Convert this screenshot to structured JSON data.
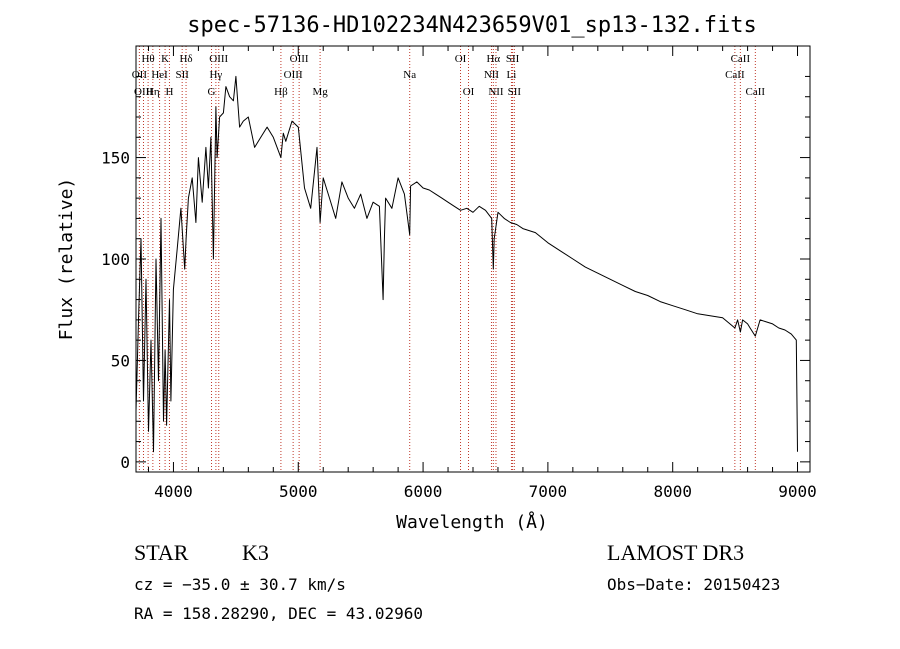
{
  "chart_data": {
    "type": "line",
    "title": "spec-57136-HD102234N423659V01_sp13-132.fits",
    "xlabel": "Wavelength (Å)",
    "ylabel": "Flux (relative)",
    "xlim": [
      3700,
      9100
    ],
    "ylim": [
      -5,
      205
    ],
    "x_ticks": [
      4000,
      5000,
      6000,
      7000,
      8000,
      9000
    ],
    "x_tick_labels": [
      "4000",
      "5000",
      "6000",
      "7000",
      "8000",
      "9000"
    ],
    "y_ticks": [
      0,
      50,
      100,
      150
    ],
    "y_tick_labels": [
      "0",
      "50",
      "100",
      "150"
    ],
    "series": [
      {
        "name": "spectrum",
        "x": [
          3700,
          3720,
          3740,
          3760,
          3780,
          3800,
          3820,
          3840,
          3860,
          3880,
          3900,
          3920,
          3933,
          3945,
          3968,
          3980,
          4000,
          4030,
          4060,
          4090,
          4101,
          4120,
          4150,
          4180,
          4200,
          4230,
          4260,
          4280,
          4300,
          4320,
          4340,
          4350,
          4370,
          4400,
          4420,
          4450,
          4480,
          4500,
          4530,
          4560,
          4600,
          4650,
          4700,
          4750,
          4800,
          4861,
          4880,
          4900,
          4950,
          5000,
          5050,
          5100,
          5150,
          5175,
          5200,
          5250,
          5300,
          5350,
          5400,
          5450,
          5500,
          5550,
          5600,
          5650,
          5680,
          5690,
          5700,
          5750,
          5800,
          5850,
          5893,
          5900,
          5950,
          6000,
          6050,
          6100,
          6150,
          6200,
          6250,
          6300,
          6350,
          6400,
          6450,
          6500,
          6550,
          6563,
          6570,
          6600,
          6650,
          6700,
          6750,
          6800,
          6900,
          7000,
          7100,
          7200,
          7300,
          7400,
          7500,
          7600,
          7700,
          7800,
          7900,
          8000,
          8100,
          8200,
          8300,
          8400,
          8498,
          8520,
          8542,
          8560,
          8600,
          8620,
          8662,
          8700,
          8750,
          8800,
          8850,
          8900,
          8950,
          8990,
          9000
        ],
        "y": [
          25,
          70,
          110,
          30,
          90,
          15,
          60,
          5,
          100,
          40,
          120,
          20,
          55,
          18,
          80,
          30,
          85,
          105,
          125,
          95,
          110,
          130,
          140,
          118,
          150,
          128,
          155,
          135,
          160,
          100,
          175,
          150,
          170,
          172,
          185,
          180,
          178,
          190,
          165,
          168,
          170,
          155,
          160,
          165,
          160,
          150,
          162,
          158,
          168,
          165,
          135,
          125,
          155,
          118,
          140,
          130,
          120,
          138,
          130,
          125,
          132,
          120,
          128,
          126,
          80,
          110,
          130,
          125,
          140,
          132,
          112,
          136,
          138,
          135,
          134,
          132,
          130,
          128,
          126,
          124,
          125,
          123,
          126,
          124,
          120,
          95,
          110,
          123,
          120,
          118,
          117,
          115,
          113,
          108,
          104,
          100,
          96,
          93,
          90,
          87,
          84,
          82,
          79,
          77,
          75,
          73,
          72,
          71,
          66,
          70,
          64,
          70,
          68,
          66,
          62,
          70,
          69,
          68,
          66,
          65,
          63,
          60,
          5
        ]
      }
    ],
    "lines": [
      {
        "label": "Hθ",
        "x": 3797,
        "row": 1
      },
      {
        "label": "OII",
        "x": 3727,
        "row": 2
      },
      {
        "label": "OIII",
        "x": 3760,
        "row": 3
      },
      {
        "label": "K",
        "x": 3933,
        "row": 1
      },
      {
        "label": "HeI",
        "x": 3889,
        "row": 2
      },
      {
        "label": "Hη",
        "x": 3835,
        "row": 3
      },
      {
        "label": "SII",
        "x": 4070,
        "row": 2
      },
      {
        "label": "H",
        "x": 3968,
        "row": 3
      },
      {
        "label": "Hδ",
        "x": 4101,
        "row": 1
      },
      {
        "label": "OIII",
        "x": 4363,
        "row": 1
      },
      {
        "label": "Hγ",
        "x": 4340,
        "row": 2
      },
      {
        "label": "G",
        "x": 4305,
        "row": 3
      },
      {
        "label": "OIII",
        "x": 5007,
        "row": 1
      },
      {
        "label": "OIII",
        "x": 4959,
        "row": 2
      },
      {
        "label": "Hβ",
        "x": 4861,
        "row": 3
      },
      {
        "label": "Mg",
        "x": 5175,
        "row": 3
      },
      {
        "label": "Na",
        "x": 5893,
        "row": 2
      },
      {
        "label": "OI",
        "x": 6300,
        "row": 1
      },
      {
        "label": "OI",
        "x": 6364,
        "row": 3
      },
      {
        "label": "Hα",
        "x": 6563,
        "row": 1
      },
      {
        "label": "NII",
        "x": 6548,
        "row": 2
      },
      {
        "label": "NII",
        "x": 6584,
        "row": 3
      },
      {
        "label": "SII",
        "x": 6717,
        "row": 1
      },
      {
        "label": "Li",
        "x": 6708,
        "row": 2
      },
      {
        "label": "SII",
        "x": 6731,
        "row": 3
      },
      {
        "label": "CaII",
        "x": 8542,
        "row": 1
      },
      {
        "label": "CaII",
        "x": 8498,
        "row": 2
      },
      {
        "label": "CaII",
        "x": 8662,
        "row": 3
      }
    ]
  },
  "info": {
    "class": "STAR",
    "subclass": "K3",
    "survey": "LAMOST DR3",
    "cz": "cz = −35.0 ± 30.7 km/s",
    "obs_date": "Obs−Date: 20150423",
    "radec": "RA = 158.28290, DEC =  43.02960"
  }
}
